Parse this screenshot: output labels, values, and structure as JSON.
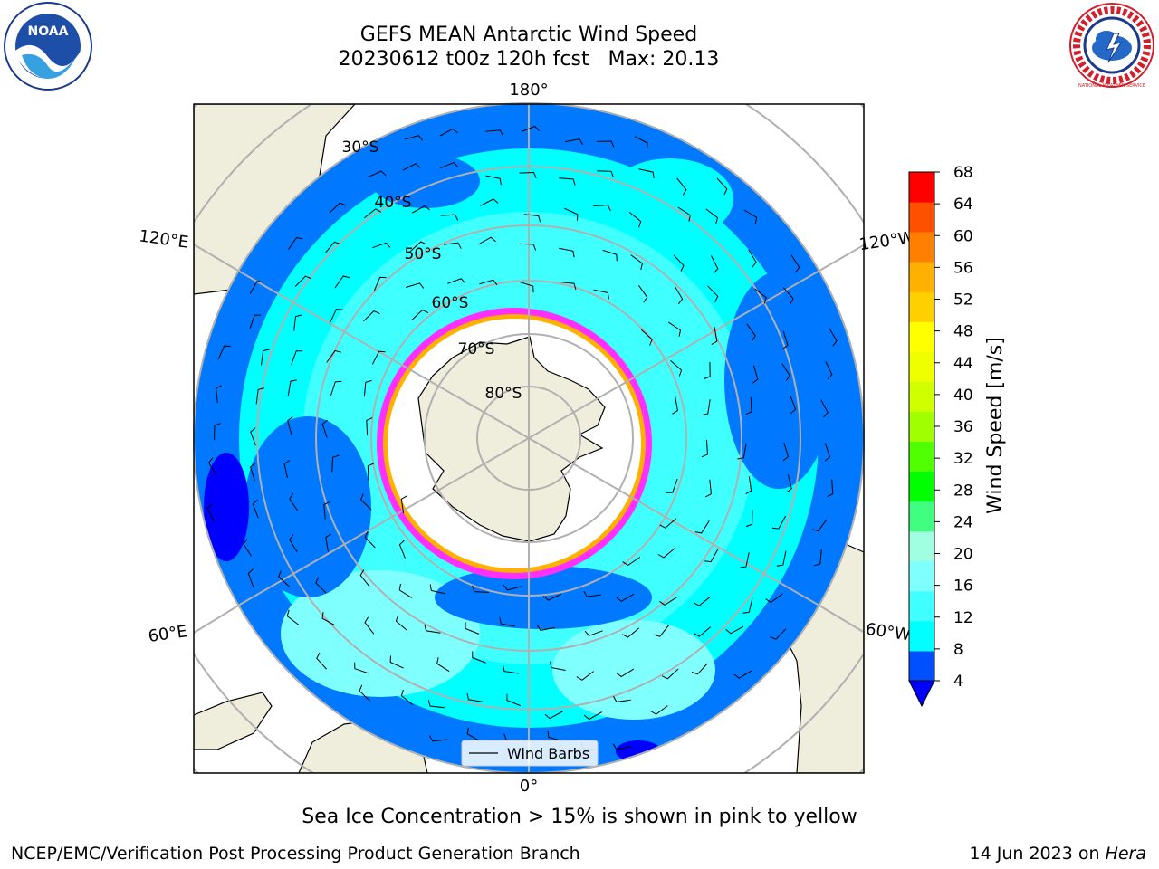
{
  "header": {
    "title_line1": "GEFS MEAN Antarctic Wind Speed",
    "title_line2": "20230612 t00z 120h fcst   Max: 20.13"
  },
  "logos": {
    "left": {
      "icon": "noaa-logo",
      "text": "NOAA"
    },
    "right": {
      "icon": "national-weather-service-logo",
      "text": "NATIONAL WEATHER SERVICE"
    }
  },
  "map": {
    "projection": "south-polar-stereographic",
    "longitude_labels": {
      "top": "180°",
      "bottom": "0°",
      "upper_left": "120°E",
      "upper_right": "120°W",
      "lower_left": "60°E",
      "lower_right": "60°W"
    },
    "latitude_labels": [
      "30°S",
      "40°S",
      "50°S",
      "60°S",
      "70°S",
      "80°S"
    ],
    "legend_label": "Wind Barbs"
  },
  "colorbar": {
    "label": "Wind Speed [m/s]",
    "ticks": [
      "4",
      "8",
      "12",
      "16",
      "20",
      "24",
      "28",
      "32",
      "36",
      "40",
      "44",
      "48",
      "52",
      "56",
      "60",
      "64",
      "68"
    ],
    "colors": [
      "#0050ff",
      "#00ffff",
      "#40ffff",
      "#80ffff",
      "#a0ffe0",
      "#40ff80",
      "#00ff00",
      "#50ff00",
      "#a0ff00",
      "#d0ff00",
      "#f0ff00",
      "#ffff00",
      "#ffd000",
      "#ffb000",
      "#ff8000",
      "#ff5000",
      "#ff0000"
    ],
    "under_color": "#0000ff"
  },
  "colors": {
    "land": "#efeedc",
    "ocean_low": "#0078ff",
    "ocean_mid": "#00ffff",
    "ocean_high": "#a0ffff",
    "sea_ice_edge": "#ff30ff",
    "sea_ice_inner": "#ffb000"
  },
  "footer": {
    "caption": "Sea Ice Concentration > 15% is shown in pink to yellow",
    "credit": "NCEP/EMC/Verification Post Processing Product Generation Branch",
    "date": "14 Jun 2023 on ",
    "machine": "Hera"
  }
}
